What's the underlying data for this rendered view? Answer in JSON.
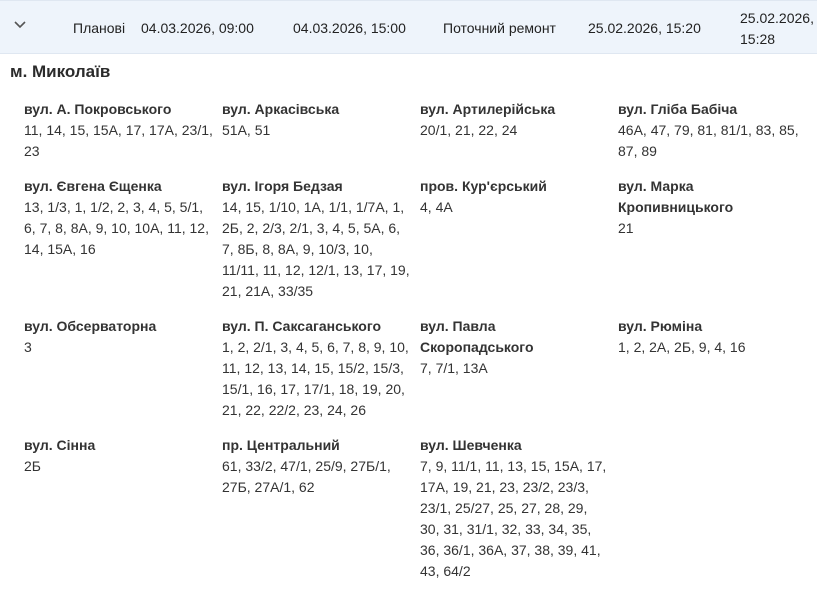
{
  "row": {
    "type": "Планові",
    "start": "04.03.2026, 09:00",
    "end": "04.03.2026, 15:00",
    "reason": "Поточний ремонт",
    "created": "25.02.2026, 15:20",
    "updated_date": "25.02.2026,",
    "updated_time": "15:28",
    "expand_icon": "chevron-down-icon"
  },
  "city": "м. Миколаїв",
  "streets": [
    {
      "name": "вул. А. Покровського",
      "houses": "11, 14, 15, 15А, 17, 17А, 23/1, 23"
    },
    {
      "name": "вул. Аркасівська",
      "houses": "51А, 51"
    },
    {
      "name": "вул. Артилерійська",
      "houses": "20/1, 21, 22, 24"
    },
    {
      "name": "вул. Гліба Бабіча",
      "houses": "46А, 47, 79, 81, 81/1, 83, 85, 87, 89"
    },
    {
      "name": "вул. Євгена Єщенка",
      "houses": "13, 1/3, 1, 1/2, 2, 3, 4, 5, 5/1, 6, 7, 8, 8А, 9, 10, 10А, 11, 12, 14, 15А, 16"
    },
    {
      "name": "вул. Ігоря Бедзая",
      "houses": "14, 15, 1/10, 1А, 1/1, 1/7А, 1, 2Б, 2, 2/3, 2/1, 3, 4, 5, 5А, 6, 7, 8Б, 8, 8А, 9, 10/3, 10, 11/11, 11, 12, 12/1, 13, 17, 19, 21, 21А, 33/35"
    },
    {
      "name": "пров. Кур'єрський",
      "houses": "4, 4А"
    },
    {
      "name": "вул. Марка Кропивницького",
      "houses": "21"
    },
    {
      "name": "вул. Обсерваторна",
      "houses": "3"
    },
    {
      "name": "вул. П. Саксаганського",
      "houses": "1, 2, 2/1, 3, 4, 5, 6, 7, 8, 9, 10, 11, 12, 13, 14, 15, 15/2, 15/3, 15/1, 16, 17, 17/1, 18, 19, 20, 21, 22, 22/2, 23, 24, 26"
    },
    {
      "name": "вул. Павла Скоропадського",
      "houses": "7, 7/1, 13А"
    },
    {
      "name": "вул. Рюміна",
      "houses": "1, 2, 2А, 2Б, 9, 4, 16"
    },
    {
      "name": "вул. Сінна",
      "houses": "2Б"
    },
    {
      "name": "пр. Центральний",
      "houses": "61, 33/2, 47/1, 25/9, 27Б/1, 27Б, 27А/1, 62"
    },
    {
      "name": "вул. Шевченка",
      "houses": "7, 9, 11/1, 11, 13, 15, 15А, 17, 17А, 19, 21, 23, 23/2, 23/3, 23/1, 25/27, 25, 27, 28, 29, 30, 31, 31/1, 32, 33, 34, 35, 36, 36/1, 36А, 37, 38, 39, 41, 43, 64/2"
    }
  ]
}
